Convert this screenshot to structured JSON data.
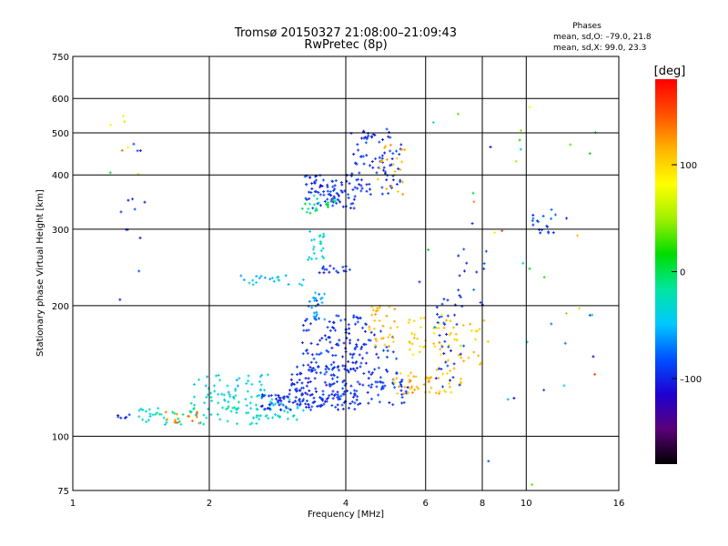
{
  "chart_data": {
    "type": "scatter",
    "title": "Tromsø 20150327 21:08:00–21:09:43",
    "subtitle": "RwPretec (8p)",
    "xlabel": "Frequency [MHz]",
    "ylabel": "Stationary phase Virtual Height [km]",
    "x_scale": "log",
    "y_scale": "log",
    "xlim": [
      1,
      16
    ],
    "ylim": [
      75,
      750
    ],
    "x_ticks": [
      {
        "value": 1,
        "label": "1"
      },
      {
        "value": 2,
        "label": "2"
      },
      {
        "value": 4,
        "label": "4"
      },
      {
        "value": 6,
        "label": "6"
      },
      {
        "value": 8,
        "label": "8"
      },
      {
        "value": 10,
        "label": "10"
      },
      {
        "value": 16,
        "label": "16"
      }
    ],
    "y_ticks": [
      {
        "value": 75,
        "label": "75"
      },
      {
        "value": 100,
        "label": "100"
      },
      {
        "value": 200,
        "label": "200"
      },
      {
        "value": 300,
        "label": "300"
      },
      {
        "value": 400,
        "label": "400"
      },
      {
        "value": 500,
        "label": "500"
      },
      {
        "value": 600,
        "label": "600"
      },
      {
        "value": 750,
        "label": "750"
      }
    ],
    "grid": true,
    "stats": {
      "title": "Phases",
      "line1": "mean, sd,O: –79.0, 21.8",
      "line2": "mean, sd,X: 99.0, 23.3"
    },
    "colorbar": {
      "label": "[deg]",
      "range": [
        -180,
        180
      ],
      "ticks": [
        {
          "value": 100,
          "label": "100"
        },
        {
          "value": 0,
          "label": "0"
        },
        {
          "value": -100,
          "label": "–100"
        }
      ],
      "colors": [
        "#000000",
        "#5a0078",
        "#1e00d2",
        "#0050ff",
        "#00c8ff",
        "#00e6a0",
        "#00dc00",
        "#a0f000",
        "#ffff00",
        "#ffb400",
        "#ff5000",
        "#ff0000"
      ]
    },
    "clusters": [
      {
        "f": [
          1.25,
          1.35
        ],
        "h": [
          110,
          113
        ],
        "ph": [
          -110,
          -80
        ],
        "n": 6
      },
      {
        "f": [
          1.4,
          1.75
        ],
        "h": [
          106,
          116
        ],
        "ph": [
          -45,
          -5
        ],
        "n": 28
      },
      {
        "f": [
          1.6,
          1.9
        ],
        "h": [
          107,
          114
        ],
        "ph": [
          115,
          150
        ],
        "n": 16
      },
      {
        "f": [
          1.8,
          2.6
        ],
        "h": [
          106,
          125
        ],
        "ph": [
          -45,
          -10
        ],
        "n": 55
      },
      {
        "f": [
          2.4,
          3.3
        ],
        "h": [
          109,
          122
        ],
        "ph": [
          -45,
          -20
        ],
        "n": 40
      },
      {
        "f": [
          1.85,
          2.7
        ],
        "h": [
          122,
          140
        ],
        "ph": [
          -60,
          -20
        ],
        "n": 38
      },
      {
        "f": [
          2.6,
          4.2
        ],
        "h": [
          115,
          125
        ],
        "ph": [
          -110,
          -80
        ],
        "n": 110
      },
      {
        "f": [
          3.0,
          4.2
        ],
        "h": [
          125,
          145
        ],
        "ph": [
          -110,
          -80
        ],
        "n": 80
      },
      {
        "f": [
          3.2,
          4.5
        ],
        "h": [
          140,
          190
        ],
        "ph": [
          -110,
          -80
        ],
        "n": 110
      },
      {
        "f": [
          3.3,
          3.6
        ],
        "h": [
          185,
          215
        ],
        "ph": [
          -100,
          -40
        ],
        "n": 25
      },
      {
        "f": [
          4.1,
          5.5
        ],
        "h": [
          118,
          135
        ],
        "ph": [
          -110,
          -80
        ],
        "n": 50
      },
      {
        "f": [
          4.0,
          5.2
        ],
        "h": [
          135,
          175
        ],
        "ph": [
          -110,
          -80
        ],
        "n": 40
      },
      {
        "f": [
          4.5,
          5.2
        ],
        "h": [
          160,
          200
        ],
        "ph": [
          100,
          125
        ],
        "n": 32
      },
      {
        "f": [
          5.1,
          6.2
        ],
        "h": [
          125,
          140
        ],
        "ph": [
          95,
          130
        ],
        "n": 35
      },
      {
        "f": [
          5.5,
          6.0
        ],
        "h": [
          150,
          190
        ],
        "ph": [
          90,
          115
        ],
        "n": 20
      },
      {
        "f": [
          6.2,
          7.2
        ],
        "h": [
          125,
          185
        ],
        "ph": [
          90,
          120
        ],
        "n": 40
      },
      {
        "f": [
          6.3,
          7.3
        ],
        "h": [
          130,
          210
        ],
        "ph": [
          -110,
          -80
        ],
        "n": 35
      },
      {
        "f": [
          7.2,
          8.3
        ],
        "h": [
          140,
          185
        ],
        "ph": [
          95,
          120
        ],
        "n": 14
      },
      {
        "f": [
          3.25,
          4.2
        ],
        "h": [
          335,
          400
        ],
        "ph": [
          -110,
          -80
        ],
        "n": 85
      },
      {
        "f": [
          3.2,
          3.9
        ],
        "h": [
          325,
          365
        ],
        "ph": [
          -30,
          10
        ],
        "n": 20
      },
      {
        "f": [
          4.1,
          5.3
        ],
        "h": [
          360,
          510
        ],
        "ph": [
          -110,
          -80
        ],
        "n": 85
      },
      {
        "f": [
          4.7,
          5.4
        ],
        "h": [
          360,
          470
        ],
        "ph": [
          95,
          125
        ],
        "n": 22
      },
      {
        "f": [
          3.3,
          3.6
        ],
        "h": [
          255,
          300
        ],
        "ph": [
          -60,
          -20
        ],
        "n": 22
      },
      {
        "f": [
          2.3,
          3.3
        ],
        "h": [
          222,
          236
        ],
        "ph": [
          -60,
          -25
        ],
        "n": 22
      },
      {
        "f": [
          3.5,
          4.2
        ],
        "h": [
          238,
          248
        ],
        "ph": [
          -110,
          -80
        ],
        "n": 16
      },
      {
        "f": [
          10.3,
          11.7
        ],
        "h": [
          285,
          335
        ],
        "ph": [
          -110,
          -70
        ],
        "n": 18
      },
      {
        "f": [
          7.0,
          8.2
        ],
        "h": [
          200,
          270
        ],
        "ph": [
          -110,
          -70
        ],
        "n": 14
      },
      {
        "f": [
          1.25,
          1.45
        ],
        "h": [
          200,
          480
        ],
        "ph": [
          -110,
          -80
        ],
        "n": 12
      },
      {
        "f": [
          1.2,
          1.4
        ],
        "h": [
          360,
          640
        ],
        "ph": [
          -90,
          160
        ],
        "n": 8
      },
      {
        "f": [
          5.8,
          15.0
        ],
        "h": [
          76,
          620
        ],
        "ph": [
          -120,
          160
        ],
        "n": 45
      }
    ]
  }
}
